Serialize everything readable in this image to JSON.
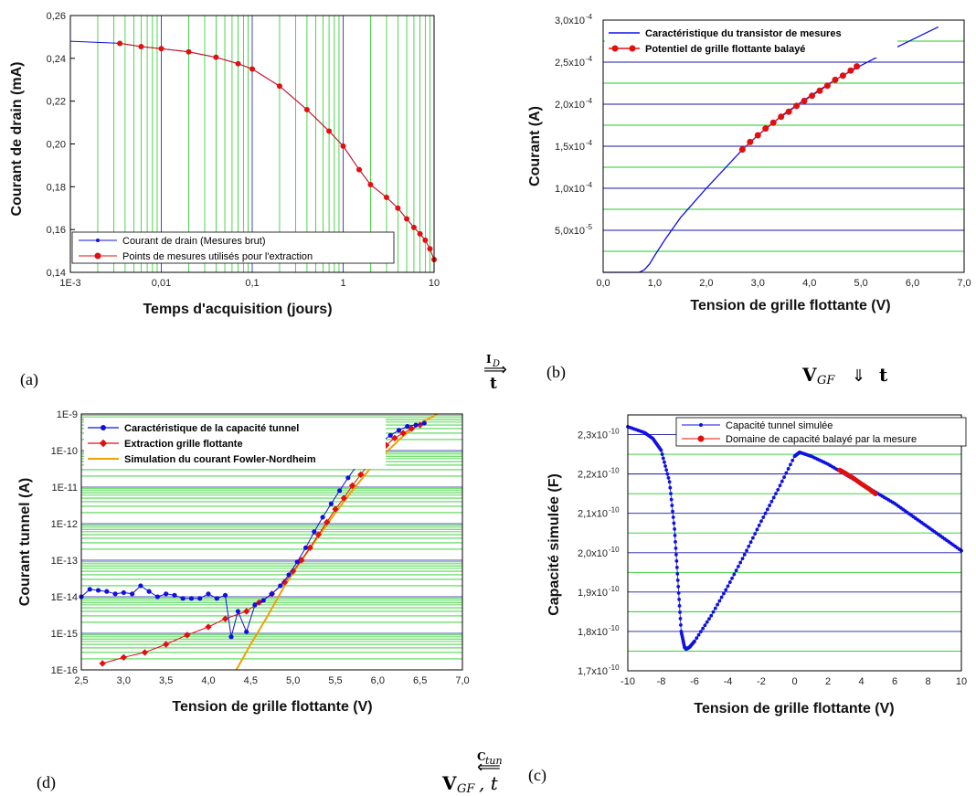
{
  "figure": {
    "panel_labels": {
      "a": "(a)",
      "b": "(b)",
      "c": "(c)",
      "d": "(d)"
    },
    "arrows": {
      "ab": {
        "top": "I",
        "top_sub": "D",
        "bottom": "t"
      },
      "bc": {
        "left": "V",
        "left_sub": "GF",
        "arrow": "⇓",
        "right": "t"
      },
      "cd": {
        "top": "C",
        "top_sub": "tun",
        "bottom": "V",
        "bottom_sub": "GF",
        "bottom_tail": ", t"
      }
    }
  },
  "colors": {
    "grid_green": "#22cc22",
    "grid_blue": "#1a1aa0",
    "series_blue": "#1010e0",
    "series_red": "#e01010",
    "series_orange": "#f0a000"
  },
  "chart_data": [
    {
      "id": "a",
      "type": "scatter",
      "xscale": "log",
      "xlim": [
        0.001,
        10
      ],
      "ylim": [
        0.14,
        0.26
      ],
      "xlabel": "Temps d'acquisition (jours)",
      "ylabel": "Courant de drain (mA)",
      "xtick_labels": [
        "1E-3",
        "0,01",
        "0,1",
        "1",
        "10"
      ],
      "ytick_labels": [
        "0,14",
        "0,16",
        "0,18",
        "0,20",
        "0,22",
        "0,24",
        "0,26"
      ],
      "legend_position": "bottom-right",
      "series": [
        {
          "name": "Courant de drain (Mesures brut)",
          "color": "blue",
          "x": [
            0.001,
            0.0035,
            0.006,
            0.01,
            0.02,
            0.04,
            0.07,
            0.1,
            0.2,
            0.4,
            0.7,
            1,
            1.5,
            2,
            3,
            4,
            5,
            6,
            7,
            8,
            9,
            10
          ],
          "y": [
            0.248,
            0.247,
            0.2455,
            0.2445,
            0.243,
            0.2405,
            0.2375,
            0.235,
            0.227,
            0.216,
            0.206,
            0.199,
            0.188,
            0.181,
            0.175,
            0.17,
            0.165,
            0.161,
            0.158,
            0.155,
            0.151,
            0.146
          ]
        },
        {
          "name": "Points de mesures utilisés pour l'extraction",
          "color": "red",
          "x": [
            0.0035,
            0.006,
            0.01,
            0.02,
            0.04,
            0.07,
            0.1,
            0.2,
            0.4,
            0.7,
            1,
            1.5,
            2,
            3,
            4,
            5,
            6,
            7,
            8,
            9,
            10
          ],
          "y": [
            0.247,
            0.2455,
            0.2445,
            0.243,
            0.2405,
            0.2375,
            0.235,
            0.227,
            0.216,
            0.206,
            0.199,
            0.188,
            0.181,
            0.175,
            0.17,
            0.165,
            0.161,
            0.158,
            0.155,
            0.151,
            0.146
          ]
        }
      ]
    },
    {
      "id": "b",
      "type": "line",
      "xlim": [
        0,
        7
      ],
      "ylim": [
        0,
        0.0003
      ],
      "xlabel": "Tension de grille flottante (V)",
      "ylabel": "Courant  (A)",
      "xtick_labels": [
        "0,0",
        "1,0",
        "2,0",
        "3,0",
        "4,0",
        "5,0",
        "6,0",
        "7,0"
      ],
      "ytick_labels": [
        "5,0x10",
        "1,0x10",
        "1,5x10",
        "2,0x10",
        "2,5x10",
        "3,0x10"
      ],
      "ytick_exponents": [
        "-5",
        "-4",
        "-4",
        "-4",
        "-4",
        "-4"
      ],
      "legend_position": "top-left",
      "series": [
        {
          "name": "Caractéristique du transistor de mesures",
          "color": "blue",
          "x": [
            0,
            0.7,
            0.8,
            0.9,
            1.0,
            1.2,
            1.5,
            2.0,
            2.7,
            3.0,
            3.5,
            4.0,
            4.5,
            5.0,
            5.5,
            6.0,
            6.5
          ],
          "y": [
            0,
            0,
            3e-06,
            1e-05,
            2e-05,
            3.9e-05,
            6.5e-05,
            0.0001,
            0.000146,
            0.000163,
            0.000188,
            0.000209,
            0.000229,
            0.000246,
            0.000262,
            0.000277,
            0.000292
          ]
        },
        {
          "name": "Potentiel de grille flottante balayé",
          "color": "red",
          "x": [
            2.7,
            2.85,
            3.0,
            3.15,
            3.3,
            3.45,
            3.6,
            3.75,
            3.9,
            4.05,
            4.2,
            4.35,
            4.5,
            4.65,
            4.8,
            4.92
          ],
          "y": [
            0.000146,
            0.000155,
            0.000163,
            0.000171,
            0.000178,
            0.000185,
            0.000191,
            0.000198,
            0.000204,
            0.00021,
            0.000216,
            0.000222,
            0.000229,
            0.000234,
            0.00024,
            0.000245
          ]
        }
      ]
    },
    {
      "id": "c",
      "type": "scatter",
      "xlim": [
        -10,
        10
      ],
      "ylim": [
        1.7e-10,
        2.35e-10
      ],
      "xlabel": "Tension de grille flottante (V)",
      "ylabel": "Capacité simulée (F)",
      "xtick_labels": [
        "-10",
        "-8",
        "-6",
        "-4",
        "-2",
        "0",
        "2",
        "4",
        "6",
        "8",
        "10"
      ],
      "ytick_labels": [
        "1,7x10",
        "1,8x10",
        "1,9x10",
        "2,0x10",
        "2,1x10",
        "2,2x10",
        "2,3x10"
      ],
      "ytick_exponent": "-10",
      "legend_position": "top-right",
      "series": [
        {
          "name": "Capacité tunnel simulée",
          "color": "blue",
          "x": [
            -10,
            -9,
            -8.5,
            -8,
            -7.5,
            -7.2,
            -7.0,
            -6.8,
            -6.6,
            -6.5,
            -6.3,
            -6.0,
            -5.0,
            -4.0,
            -3.0,
            -2.0,
            -1.0,
            0,
            0.3,
            1.0,
            2.0,
            3.0,
            4.0,
            5.0,
            6.0,
            7.0,
            8.0,
            9.0,
            10.0
          ],
          "y": [
            2.32e-10,
            2.305e-10,
            2.29e-10,
            2.26e-10,
            2.18e-10,
            2.06e-10,
            1.93e-10,
            1.8e-10,
            1.76e-10,
            1.755e-10,
            1.76e-10,
            1.775e-10,
            1.84e-10,
            1.915e-10,
            1.995e-10,
            2.08e-10,
            2.16e-10,
            2.245e-10,
            2.255e-10,
            2.245e-10,
            2.225e-10,
            2.2e-10,
            2.175e-10,
            2.15e-10,
            2.125e-10,
            2.095e-10,
            2.065e-10,
            2.035e-10,
            2.005e-10
          ]
        },
        {
          "name": "Domaine de capacité balayé par la mesure",
          "color": "red",
          "x": [
            2.7,
            3.0,
            3.5,
            4.0,
            4.5,
            4.92
          ],
          "y": [
            2.21e-10,
            2.203e-10,
            2.19e-10,
            2.175e-10,
            2.161e-10,
            2.147e-10
          ]
        }
      ]
    },
    {
      "id": "d",
      "type": "scatter",
      "yscale": "log",
      "xlim": [
        2.5,
        7.0
      ],
      "ylim": [
        1e-16,
        1e-09
      ],
      "xlabel": "Tension de grille flottante (V)",
      "ylabel": "Courant tunnel (A)",
      "xtick_labels": [
        "2,5",
        "3,0",
        "3,5",
        "4,0",
        "4,5",
        "5,0",
        "5,5",
        "6,0",
        "6,5",
        "7,0"
      ],
      "ytick_labels": [
        "1E-16",
        "1E-15",
        "1E-14",
        "1E-13",
        "1E-12",
        "1E-11",
        "1E-10",
        "1E-9"
      ],
      "legend_position": "top-left",
      "series": [
        {
          "name": "Caractéristique de la capacité tunnel",
          "color": "blue",
          "x": [
            2.5,
            2.6,
            2.7,
            2.8,
            2.9,
            3.0,
            3.1,
            3.2,
            3.3,
            3.4,
            3.5,
            3.6,
            3.7,
            3.8,
            3.9,
            4.0,
            4.1,
            4.2,
            4.27,
            4.35,
            4.45,
            4.55,
            4.65,
            4.75,
            4.85,
            4.95,
            5.05,
            5.15,
            5.25,
            5.35,
            5.45,
            5.55,
            5.65,
            5.75,
            5.85,
            5.95,
            6.05,
            6.15,
            6.25,
            6.35,
            6.45,
            6.55
          ],
          "y": [
            1e-14,
            1.6e-14,
            1.5e-14,
            1.4e-14,
            1.2e-14,
            1.3e-14,
            1.2e-14,
            2e-14,
            1.4e-14,
            1e-14,
            1.2e-14,
            1.1e-14,
            9e-15,
            9e-15,
            9e-15,
            1.2e-14,
            9e-15,
            1.1e-14,
            8e-16,
            4e-15,
            1.1e-15,
            6e-15,
            8e-15,
            1.2e-14,
            2e-14,
            4e-14,
            9e-14,
            2.2e-13,
            6e-13,
            1.5e-12,
            3.5e-12,
            8e-12,
            1.8e-11,
            3.8e-11,
            7e-11,
            1.2e-10,
            1.8e-10,
            2.6e-10,
            3.6e-10,
            4.6e-10,
            5e-10,
            5.6e-10
          ]
        },
        {
          "name": "Extraction grille flottante",
          "color": "red",
          "x": [
            2.75,
            3.0,
            3.25,
            3.5,
            3.75,
            4.0,
            4.2,
            4.45,
            4.6,
            4.75,
            4.9,
            5.0,
            5.1,
            5.2,
            5.3,
            5.4,
            5.5,
            5.6,
            5.7,
            5.8,
            5.9,
            6.0,
            6.1,
            6.2,
            6.3,
            6.4,
            6.5
          ],
          "y": [
            1.5e-16,
            2.2e-16,
            3e-16,
            5e-16,
            9e-16,
            1.5e-15,
            2.5e-15,
            4e-15,
            7e-15,
            1.2e-14,
            2.5e-14,
            5e-14,
            1e-13,
            2.2e-13,
            5e-13,
            1.1e-12,
            2.5e-12,
            5e-12,
            1.1e-11,
            2.2e-11,
            4.5e-11,
            8.5e-11,
            1.4e-10,
            2.2e-10,
            3e-10,
            4e-10,
            5e-10
          ]
        },
        {
          "name": "Simulation du courant Fowler-Nordheim",
          "color": "orange",
          "x": [
            4.33,
            4.5,
            4.7,
            4.9,
            5.1,
            5.3,
            5.5,
            5.7,
            5.9,
            6.1,
            6.3,
            6.5,
            6.7
          ],
          "y": [
            1e-16,
            5e-16,
            3e-15,
            2e-14,
            1e-13,
            4.5e-13,
            2e-12,
            8e-12,
            3e-11,
            9e-11,
            2.5e-10,
            5.5e-10,
            1e-09
          ]
        }
      ]
    }
  ]
}
